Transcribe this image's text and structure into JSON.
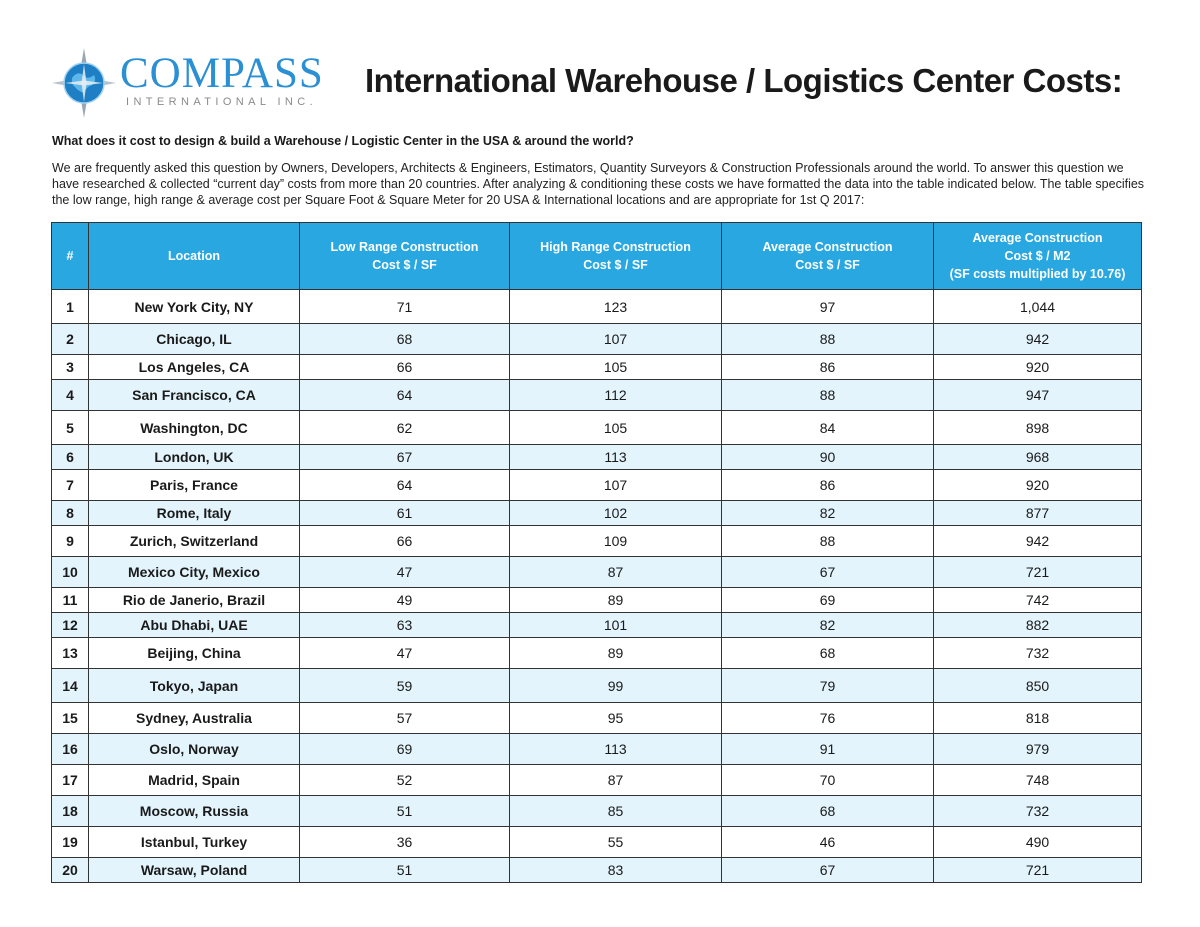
{
  "logo": {
    "name": "COMPASS",
    "subtitle": "INTERNATIONAL INC.",
    "icon": "compass-globe-icon",
    "colors": {
      "blue": "#2b8fd4",
      "grey": "#8a8a8a"
    }
  },
  "title": "International Warehouse / Logistics Center Costs:",
  "question": "What does it cost to design & build a Warehouse / Logistic Center in the USA & around the world?",
  "intro": "We are frequently asked this question by Owners, Developers, Architects & Engineers, Estimators, Quantity Surveyors & Construction Professionals around the world.  To answer this question we have researched & collected “current day” costs from more than 20 countries.  After analyzing & conditioning these costs we have formatted the data into the table indicated below.  The table specifies the low range, high range & average cost per Square Foot & Square Meter for 20 USA & International locations and are appropriate for 1st Q 2017:",
  "table": {
    "header_color": "#29a7e0",
    "stripe_color": "#e3f4fc",
    "headers": [
      {
        "line1": "#",
        "line2": "",
        "line3": ""
      },
      {
        "line1": "Location",
        "line2": "",
        "line3": ""
      },
      {
        "line1": "Low Range Construction",
        "line2": "Cost $ / SF",
        "line3": ""
      },
      {
        "line1": "High Range Construction",
        "line2": "Cost $ / SF",
        "line3": ""
      },
      {
        "line1": "Average Construction",
        "line2": "Cost $ / SF",
        "line3": ""
      },
      {
        "line1": "Average Construction",
        "line2": "Cost $ / M2",
        "line3": "(SF costs multiplied by 10.76)"
      }
    ],
    "rows": [
      {
        "num": "1",
        "location": "New York City, NY",
        "low": "71",
        "high": "123",
        "avg_sf": "97",
        "avg_m2": "1,044"
      },
      {
        "num": "2",
        "location": "Chicago, IL",
        "low": "68",
        "high": "107",
        "avg_sf": "88",
        "avg_m2": "942"
      },
      {
        "num": "3",
        "location": "Los Angeles, CA",
        "low": "66",
        "high": "105",
        "avg_sf": "86",
        "avg_m2": "920"
      },
      {
        "num": "4",
        "location": "San Francisco, CA",
        "low": "64",
        "high": "112",
        "avg_sf": "88",
        "avg_m2": "947"
      },
      {
        "num": "5",
        "location": "Washington, DC",
        "low": "62",
        "high": "105",
        "avg_sf": "84",
        "avg_m2": "898"
      },
      {
        "num": "6",
        "location": "London, UK",
        "low": "67",
        "high": "113",
        "avg_sf": "90",
        "avg_m2": "968"
      },
      {
        "num": "7",
        "location": "Paris, France",
        "low": "64",
        "high": "107",
        "avg_sf": "86",
        "avg_m2": "920"
      },
      {
        "num": "8",
        "location": "Rome, Italy",
        "low": "61",
        "high": "102",
        "avg_sf": "82",
        "avg_m2": "877"
      },
      {
        "num": "9",
        "location": "Zurich, Switzerland",
        "low": "66",
        "high": "109",
        "avg_sf": "88",
        "avg_m2": "942"
      },
      {
        "num": "10",
        "location": "Mexico City, Mexico",
        "low": "47",
        "high": "87",
        "avg_sf": "67",
        "avg_m2": "721"
      },
      {
        "num": "11",
        "location": "Rio de Janerio, Brazil",
        "low": "49",
        "high": "89",
        "avg_sf": "69",
        "avg_m2": "742"
      },
      {
        "num": "12",
        "location": "Abu Dhabi, UAE",
        "low": "63",
        "high": "101",
        "avg_sf": "82",
        "avg_m2": "882"
      },
      {
        "num": "13",
        "location": "Beijing, China",
        "low": "47",
        "high": "89",
        "avg_sf": "68",
        "avg_m2": "732"
      },
      {
        "num": "14",
        "location": "Tokyo, Japan",
        "low": "59",
        "high": "99",
        "avg_sf": "79",
        "avg_m2": "850"
      },
      {
        "num": "15",
        "location": "Sydney, Australia",
        "low": "57",
        "high": "95",
        "avg_sf": "76",
        "avg_m2": "818"
      },
      {
        "num": "16",
        "location": "Oslo, Norway",
        "low": "69",
        "high": "113",
        "avg_sf": "91",
        "avg_m2": "979"
      },
      {
        "num": "17",
        "location": "Madrid, Spain",
        "low": "52",
        "high": "87",
        "avg_sf": "70",
        "avg_m2": "748"
      },
      {
        "num": "18",
        "location": "Moscow, Russia",
        "low": "51",
        "high": "85",
        "avg_sf": "68",
        "avg_m2": "732"
      },
      {
        "num": "19",
        "location": "Istanbul, Turkey",
        "low": "36",
        "high": "55",
        "avg_sf": "46",
        "avg_m2": "490"
      },
      {
        "num": "20",
        "location": "Warsaw, Poland",
        "low": "51",
        "high": "83",
        "avg_sf": "67",
        "avg_m2": "721"
      }
    ]
  }
}
